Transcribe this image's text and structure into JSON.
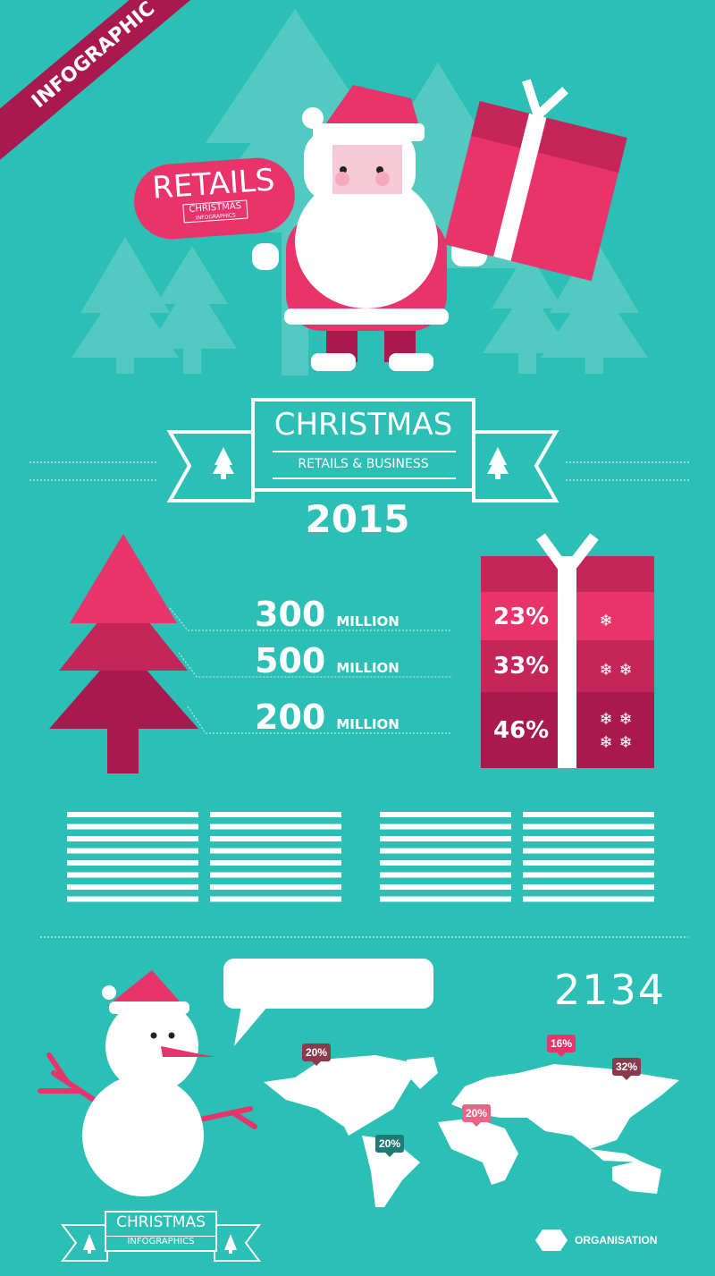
{
  "colors": {
    "background": "#2bbfb5",
    "pink": "#e8336b",
    "dark_pink": "#a8194e",
    "medium_pink": "#c42659",
    "light_tree": "#5ccdc4"
  },
  "ribbon": {
    "label": "INFOGRAPHIC"
  },
  "sign": {
    "title": "RETAILS",
    "badge_top": "CHRISTMAS",
    "badge_bottom": "INFOGRAPHICS"
  },
  "banner": {
    "title": "CHRISTMAS",
    "subtitle": "RETAILS & BUSINESS",
    "year": "2015"
  },
  "stats": [
    {
      "value": "300",
      "unit": "MILLION"
    },
    {
      "value": "500",
      "unit": "MILLION"
    },
    {
      "value": "200",
      "unit": "MILLION"
    }
  ],
  "gift_rows": [
    {
      "percent": "23%",
      "snowflakes": 1
    },
    {
      "percent": "33%",
      "snowflakes": 2
    },
    {
      "percent": "46%",
      "snowflakes": 4
    }
  ],
  "counter": "2134",
  "map_pins": [
    {
      "label": "20%",
      "color": "#8b3a4e"
    },
    {
      "label": "20%",
      "color": "#1e7b75"
    },
    {
      "label": "16%",
      "color": "#e8336b"
    },
    {
      "label": "20%",
      "color": "#ec6387"
    },
    {
      "label": "32%",
      "color": "#8b3a4e"
    }
  ],
  "footer_badge": {
    "top": "CHRISTMAS",
    "bottom": "INFOGRAPHICS"
  },
  "legend": {
    "label": "ORGANISATION"
  }
}
